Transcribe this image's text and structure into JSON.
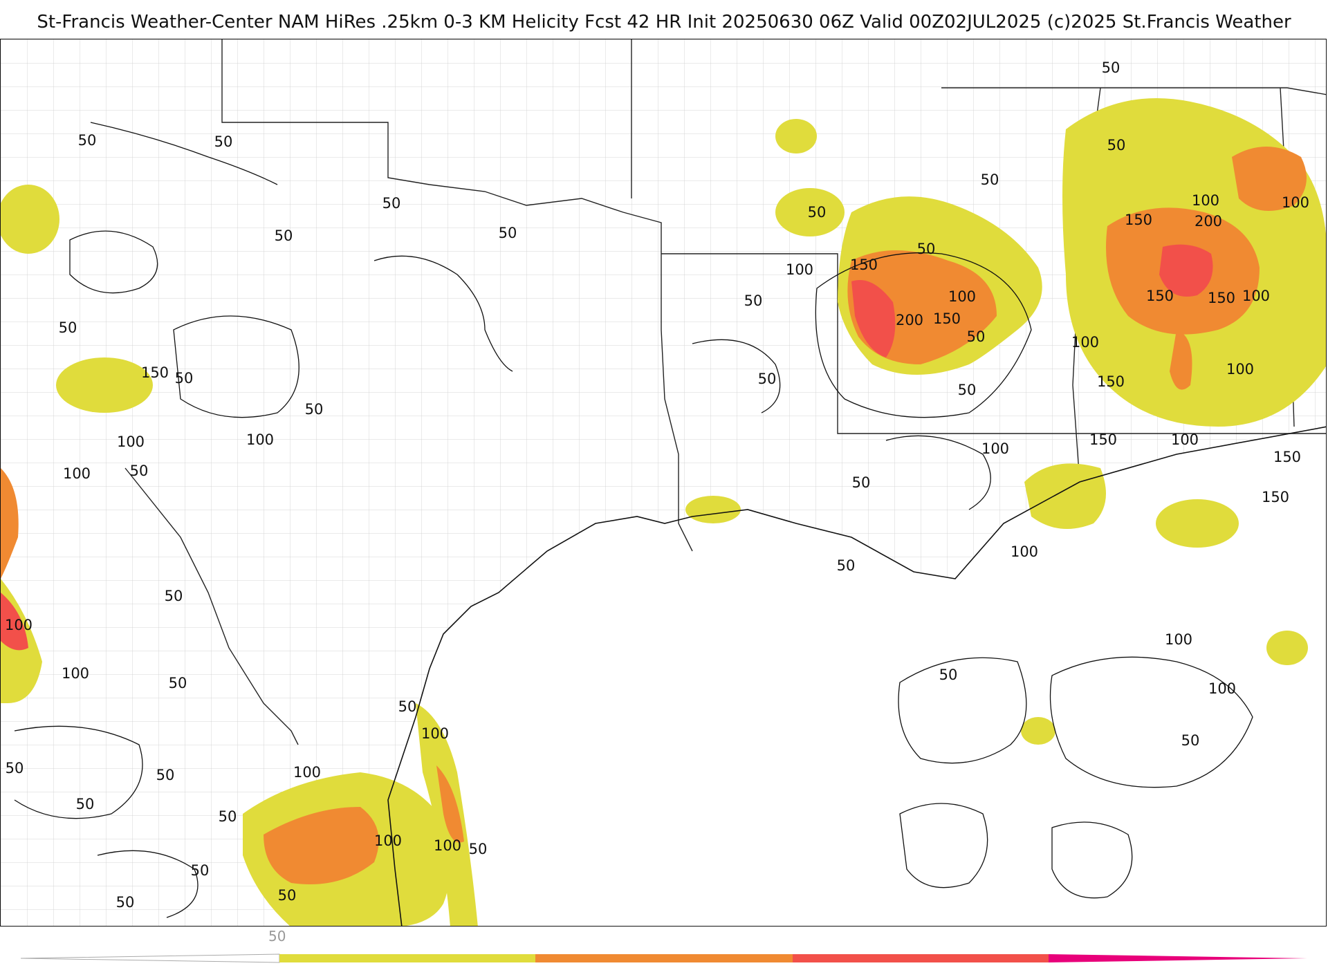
{
  "header": {
    "title": "St-Francis Weather-Center NAM HiRes .25km 0-3 KM Helicity Fcst 42 HR Init 20250630 06Z  Valid 00Z02JUL2025    (c)2025 St.Francis Weather"
  },
  "map": {
    "field": "0-3 KM Helicity",
    "colors": {
      "level_50": "#e0dc3c",
      "level_100": "#f08a32",
      "level_150": "#f2504a",
      "level_200": "#ff2a5c",
      "level_250": "#e8007a",
      "contour": "#111111",
      "county_lines": "#d0d0d0",
      "state_lines": "#222222"
    },
    "contour_labels": [
      "50",
      "50",
      "50",
      "50",
      "50",
      "50",
      "50",
      "50",
      "50",
      "50",
      "50",
      "50",
      "50",
      "50",
      "50",
      "50",
      "50",
      "50",
      "50",
      "50",
      "50",
      "50",
      "50",
      "50",
      "50",
      "50",
      "50",
      "50",
      "50",
      "50",
      "50",
      "50",
      "100",
      "100",
      "100",
      "100",
      "100",
      "100",
      "100",
      "100",
      "100",
      "100",
      "100",
      "100",
      "100",
      "100",
      "100",
      "100",
      "100",
      "100",
      "100",
      "100",
      "100",
      "150",
      "150",
      "150",
      "150",
      "150",
      "150",
      "150",
      "150",
      "150",
      "150",
      "200",
      "200"
    ]
  },
  "colorbar": {
    "tick_label": "50",
    "colors": [
      "#e0dc3c",
      "#f08a32",
      "#f2504a",
      "#e8007a"
    ]
  }
}
